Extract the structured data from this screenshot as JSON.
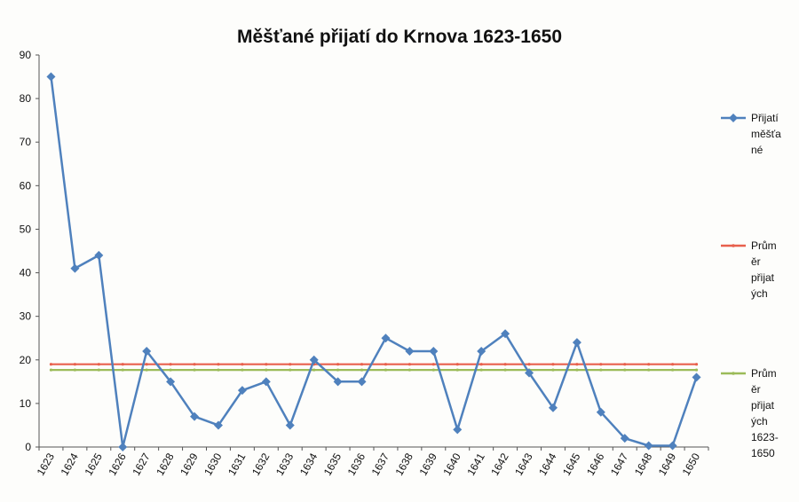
{
  "chart_data": {
    "type": "line",
    "title": "Měšťané přijatí do Krnova 1623-1650",
    "xlabel": "",
    "ylabel": "",
    "x": [
      "1623",
      "1624",
      "1625",
      "1626",
      "1627",
      "1628",
      "1629",
      "1630",
      "1631",
      "1632",
      "1633",
      "1634",
      "1635",
      "1636",
      "1637",
      "1638",
      "1639",
      "1640",
      "1641",
      "1642",
      "1643",
      "1644",
      "1645",
      "1646",
      "1647",
      "1648",
      "1649",
      "1650"
    ],
    "ylim": [
      0,
      90
    ],
    "yticks": [
      0,
      10,
      20,
      30,
      40,
      50,
      60,
      70,
      80,
      90
    ],
    "grid": false,
    "legend_position": "right",
    "series": [
      {
        "name_lines": [
          "Přijatí",
          "měšťa",
          "né"
        ],
        "color": "#4f81bd",
        "marker": "diamond",
        "values": [
          85,
          41,
          44,
          0,
          22,
          15,
          7,
          5,
          13,
          15,
          5,
          20,
          15,
          15,
          25,
          22,
          22,
          4,
          22,
          26,
          17,
          9,
          24,
          8,
          2,
          0.3,
          0.3,
          16
        ]
      },
      {
        "name_lines": [
          "Prům",
          "ěr",
          "přijat",
          "ých"
        ],
        "color": "#e8604c",
        "marker": "dot",
        "values": [
          19,
          19,
          19,
          19,
          19,
          19,
          19,
          19,
          19,
          19,
          19,
          19,
          19,
          19,
          19,
          19,
          19,
          19,
          19,
          19,
          19,
          19,
          19,
          19,
          19,
          19,
          19,
          19
        ]
      },
      {
        "name_lines": [
          "Prům",
          "ěr",
          "přijat",
          "ých",
          "1623-",
          "1650"
        ],
        "color": "#9bbb59",
        "marker": "dot",
        "values": [
          17.7,
          17.7,
          17.7,
          17.7,
          17.7,
          17.7,
          17.7,
          17.7,
          17.7,
          17.7,
          17.7,
          17.7,
          17.7,
          17.7,
          17.7,
          17.7,
          17.7,
          17.7,
          17.7,
          17.7,
          17.7,
          17.7,
          17.7,
          17.7,
          17.7,
          17.7,
          17.7,
          17.7
        ]
      }
    ]
  }
}
